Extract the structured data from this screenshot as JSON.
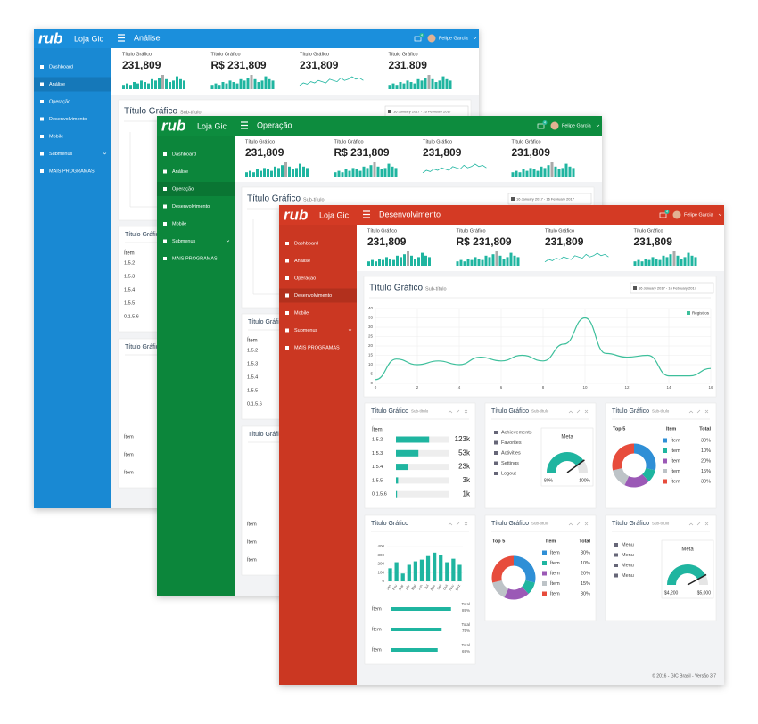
{
  "spark_bars": [
    3,
    4,
    3,
    5,
    4,
    6,
    5,
    4,
    7,
    6,
    8,
    10,
    7,
    5,
    6,
    9,
    7,
    6
  ],
  "spark_highlight": 11,
  "spark_line": [
    3,
    5,
    4,
    6,
    5,
    7,
    6,
    5,
    8,
    7,
    6,
    9,
    7,
    8,
    10,
    8,
    9,
    7
  ],
  "windows": [
    {
      "color": "#1b8fdc",
      "brand": "rub",
      "app": "Loja Gic",
      "section": "Análise",
      "user": "Felipe Garcia",
      "badge": "4",
      "menu": [
        "Dashboard",
        "Análise",
        "Operação",
        "Desenvolvimento",
        "Mobile",
        "Submenus",
        "MAIS PROGRAMAS"
      ],
      "active": 1,
      "kpis": [
        {
          "label": "Título Gráfico",
          "value": "231,809",
          "spark": "bars"
        },
        {
          "label": "Título Gráfico",
          "value": "R$ 231,809",
          "spark": "bars"
        },
        {
          "label": "Título Gráfico",
          "value": "231,809",
          "spark": "line"
        },
        {
          "label": "Título Gráfico",
          "value": "231,809",
          "spark": "bars"
        }
      ],
      "chart": {
        "title": "Título Gráfico",
        "subtitle": "Sub-título",
        "range": "16 January 2017 - 16 February 2017"
      },
      "list": {
        "title": "Título Gráfico",
        "head": "Ítem",
        "rows": [
          "1.5.2",
          "1.5.3",
          "1.5.4",
          "1.5.5",
          "0.1.5.6"
        ]
      },
      "panel2": {
        "title": "Título Gráfico",
        "items": [
          "Ítem",
          "Ítem",
          "Ítem"
        ]
      }
    },
    {
      "color": "#0d8c3e",
      "brand": "rub",
      "app": "Loja Gic",
      "section": "Operação",
      "user": "Felipe Garcia",
      "badge": "4",
      "menu": [
        "Dashboard",
        "Análise",
        "Operação",
        "Desenvolvimento",
        "Mobile",
        "Submenus",
        "MAIS PROGRAMAS"
      ],
      "active": 2,
      "kpis": [
        {
          "label": "Título Gráfico",
          "value": "231,809",
          "spark": "bars"
        },
        {
          "label": "Título Gráfico",
          "value": "R$ 231,809",
          "spark": "bars"
        },
        {
          "label": "Título Gráfico",
          "value": "231,809",
          "spark": "line"
        },
        {
          "label": "Título Gráfico",
          "value": "231,809",
          "spark": "bars"
        }
      ],
      "chart": {
        "title": "Título Gráfico",
        "subtitle": "Sub-título",
        "range": "16 January 2017 - 16 February 2017"
      },
      "list": {
        "title": "Título Gráfico",
        "head": "Ítem",
        "rows": [
          "1.5.2",
          "1.5.3",
          "1.5.4",
          "1.5.5",
          "0.1.5.6"
        ]
      },
      "panel2": {
        "title": "Título Gráfico",
        "items": [
          "Ítem",
          "Ítem",
          "Ítem"
        ]
      }
    },
    {
      "color": "#d43a24",
      "brand": "rub",
      "app": "Loja Gic",
      "section": "Desenvolvimento",
      "user": "Felipe Garcia",
      "badge": "4",
      "menu": [
        "Dashboard",
        "Análise",
        "Operação",
        "Desenvolvimento",
        "Mobile",
        "Submenus",
        "MAIS PROGRAMAS"
      ],
      "active": 3,
      "kpis": [
        {
          "label": "Título Gráfico",
          "value": "231,809",
          "spark": "bars"
        },
        {
          "label": "Título Gráfico",
          "value": "R$ 231,809",
          "spark": "bars"
        },
        {
          "label": "Título Gráfico",
          "value": "231,809",
          "spark": "line"
        },
        {
          "label": "Título Gráfico",
          "value": "231,809",
          "spark": "bars"
        }
      ],
      "chart": {
        "title": "Título Gráfico",
        "subtitle": "Sub-título",
        "range": "16 January 2017 - 16 February 2017"
      },
      "line_chart": {
        "type": "line",
        "x": [
          0,
          1,
          2,
          3,
          4,
          5,
          6,
          7,
          8,
          9,
          10,
          11,
          12,
          13,
          14,
          15,
          16
        ],
        "values": [
          2,
          13,
          10,
          12,
          10,
          14,
          12,
          15,
          12,
          21,
          35,
          16,
          14,
          15,
          4,
          4,
          8
        ],
        "xlim": [
          0,
          16
        ],
        "xticks": [
          0,
          2,
          4,
          6,
          8,
          10,
          12,
          14,
          16
        ],
        "ylim": [
          0,
          40
        ],
        "yticks": [
          0,
          5,
          10,
          15,
          20,
          25,
          30,
          35,
          40
        ],
        "legend": "Registros",
        "color": "#3dbf9b",
        "grid": true
      },
      "table_panel": {
        "title": "Título Gráfico",
        "subtitle": "Sub-título",
        "head": "Ítem",
        "rows": [
          {
            "label": "1.5.2",
            "bar": 62,
            "value": "123k"
          },
          {
            "label": "1.5.3",
            "bar": 42,
            "value": "53k"
          },
          {
            "label": "1.5.4",
            "bar": 23,
            "value": "23k"
          },
          {
            "label": "1.5.5",
            "bar": 4,
            "value": "3k"
          },
          {
            "label": "0.1.5.6",
            "bar": 2,
            "value": "1k"
          }
        ]
      },
      "menu_panel": {
        "title": "Título Gráfico",
        "subtitle": "Sub-título",
        "links": [
          "Achievements",
          "Favorites",
          "Activities",
          "Settings",
          "Logout"
        ],
        "gauge": {
          "title": "Meta",
          "value": 80,
          "max": 100,
          "value_label": "80%",
          "max_label": "100%"
        }
      },
      "donut_panel": {
        "title": "Título Gráfico",
        "subtitle": "Sub-título",
        "caption": "Top 5",
        "col1": "Item",
        "col2": "Total",
        "labels": [
          "Ítem",
          "Ítem",
          "Ítem",
          "Ítem",
          "Ítem"
        ],
        "values": [
          30,
          10,
          20,
          15,
          30
        ],
        "value_labels": [
          "30%",
          "10%",
          "20%",
          "15%",
          "30%"
        ],
        "colors": [
          "#2f8fd6",
          "#1fb5a0",
          "#9b59b6",
          "#bdc3c7",
          "#e74c3c"
        ]
      },
      "bar_panel": {
        "title": "Título Gráfico",
        "type": "bar",
        "categories": [
          "Jan",
          "Fev",
          "Mar",
          "Abr",
          "Mai",
          "Jun",
          "Jul",
          "Ago",
          "Set",
          "Out",
          "Nov",
          "Dez"
        ],
        "values": [
          150,
          220,
          90,
          190,
          230,
          250,
          290,
          330,
          300,
          220,
          260,
          190
        ],
        "ylim": [
          0,
          400
        ],
        "yticks": [
          0,
          100,
          200,
          300,
          400
        ],
        "color": "#1fb5a0",
        "progress": [
          {
            "label": "Ítem",
            "caption": "Total",
            "value": 89,
            "value_label": "89%"
          },
          {
            "label": "Ítem",
            "caption": "Total",
            "value": 75,
            "value_label": "75%"
          },
          {
            "label": "Ítem",
            "caption": "Total",
            "value": 69,
            "value_label": "69%"
          }
        ]
      },
      "donut_panel2": {
        "title": "Título Gráfico",
        "subtitle": "Sub-título",
        "caption": "Top 5",
        "col1": "Item",
        "col2": "Total",
        "labels": [
          "Ítem",
          "Ítem",
          "Ítem",
          "Ítem",
          "Ítem"
        ],
        "values": [
          30,
          10,
          20,
          15,
          30
        ],
        "value_labels": [
          "30%",
          "10%",
          "20%",
          "15%",
          "30%"
        ],
        "colors": [
          "#2f8fd6",
          "#1fb5a0",
          "#9b59b6",
          "#bdc3c7",
          "#e74c3c"
        ]
      },
      "menu_panel2": {
        "title": "Título Gráfico",
        "subtitle": "Sub-título",
        "links": [
          "Menu",
          "Menu",
          "Menu",
          "Menu"
        ],
        "gauge": {
          "title": "Meta",
          "value": 4200,
          "max": 5000,
          "value_label": "$4,200",
          "max_label": "$5,000"
        }
      },
      "footer": "© 2016 - GIC Brasil - Versão 3.7"
    }
  ]
}
